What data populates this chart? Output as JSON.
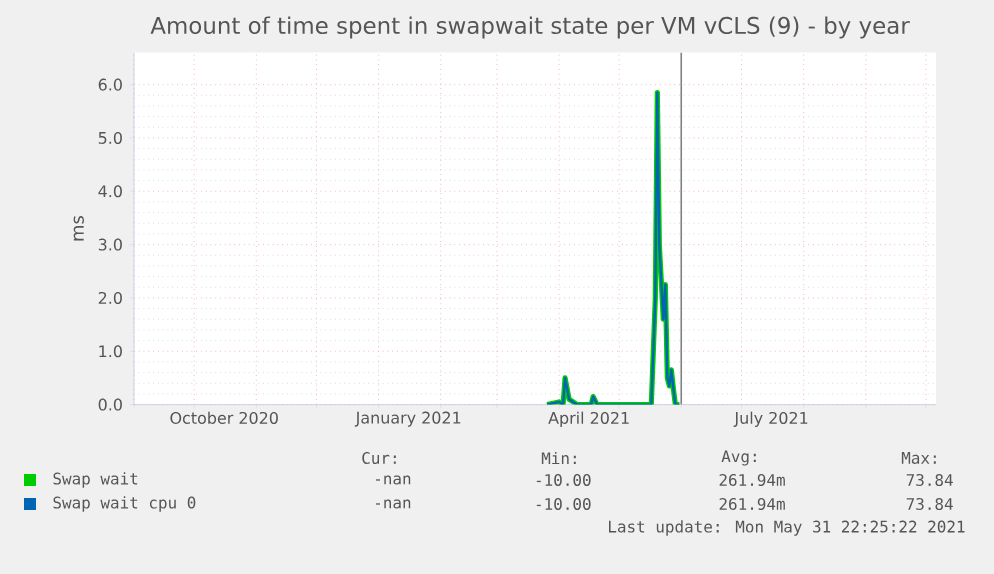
{
  "chart_data": {
    "type": "line",
    "title": "Amount of time spent in swapwait state per VM vCLS (9) - by year",
    "ylabel": "ms",
    "x": [
      "2021-03-26",
      "2021-04-01",
      "2021-04-03",
      "2021-04-04",
      "2021-04-06",
      "2021-04-08",
      "2021-04-10",
      "2021-04-17",
      "2021-04-18",
      "2021-04-20",
      "2021-05-17",
      "2021-05-19",
      "2021-05-20",
      "2021-05-21",
      "2021-05-22",
      "2021-05-23",
      "2021-05-24",
      "2021-05-25",
      "2021-05-26",
      "2021-05-27",
      "2021-05-28",
      "2021-05-29",
      "2021-05-31"
    ],
    "series": [
      {
        "name": "Swap wait",
        "color": "#00cc00",
        "values": [
          0,
          0.05,
          0,
          0.5,
          0.1,
          0.05,
          0,
          0,
          0.15,
          0,
          0,
          2.0,
          5.85,
          3.0,
          2.3,
          1.6,
          2.25,
          0.5,
          0.35,
          0.65,
          0.3,
          0,
          0
        ]
      },
      {
        "name": "Swap wait cpu 0",
        "color": "#0066b3",
        "values": [
          0,
          0.05,
          0,
          0.5,
          0.1,
          0.05,
          0,
          0,
          0.15,
          0,
          0,
          2.0,
          5.85,
          3.0,
          2.3,
          1.6,
          2.25,
          0.5,
          0.35,
          0.65,
          0.3,
          0,
          0
        ]
      }
    ],
    "xlim": [
      "2020-09-01",
      "2021-10-06"
    ],
    "xticks": [
      {
        "value": "2020-09-01",
        "label": null
      },
      {
        "value": "2020-10-01",
        "label": null
      },
      {
        "value": "2020-11-01",
        "label": null
      },
      {
        "value": "2020-12-01",
        "label": null
      },
      {
        "value": "2021-01-01",
        "label": null
      },
      {
        "value": "2021-02-01",
        "label": null
      },
      {
        "value": "2021-03-01",
        "label": null
      },
      {
        "value": "2021-04-01",
        "label": null
      },
      {
        "value": "2021-05-01",
        "label": null
      },
      {
        "value": "2021-06-01",
        "label": null
      },
      {
        "value": "2021-07-01",
        "label": null
      },
      {
        "value": "2021-08-01",
        "label": null
      },
      {
        "value": "2021-09-01",
        "label": null
      },
      {
        "value": "2021-10-01",
        "label": null
      },
      {
        "value": "2020-10-16",
        "label": "October 2020"
      },
      {
        "value": "2021-01-16",
        "label": "January 2021"
      },
      {
        "value": "2021-04-16",
        "label": "April 2021"
      },
      {
        "value": "2021-07-16",
        "label": "July 2021"
      }
    ],
    "ylim": [
      0,
      6.6
    ],
    "yticks": [
      {
        "value": 0,
        "label": "0.0"
      },
      {
        "value": 1,
        "label": "1.0"
      },
      {
        "value": 2,
        "label": "2.0"
      },
      {
        "value": 3,
        "label": "3.0"
      },
      {
        "value": 4,
        "label": "4.0"
      },
      {
        "value": 5,
        "label": "5.0"
      },
      {
        "value": 6,
        "label": "6.0"
      }
    ],
    "ref_lines": [
      {
        "axis": "x",
        "value": "2021-05-31T22:25",
        "color": "#808080"
      }
    ],
    "grid": true,
    "legend": "bottom",
    "annotations": [
      "Cur:",
      "Min:",
      "Avg:",
      "Max:",
      "-nan",
      "-10.00",
      "261.94m",
      "73.84",
      "-nan",
      "-10.00",
      "261.94m",
      "73.84",
      "Last update: Mon May 31 22:25:22 2021"
    ]
  }
}
